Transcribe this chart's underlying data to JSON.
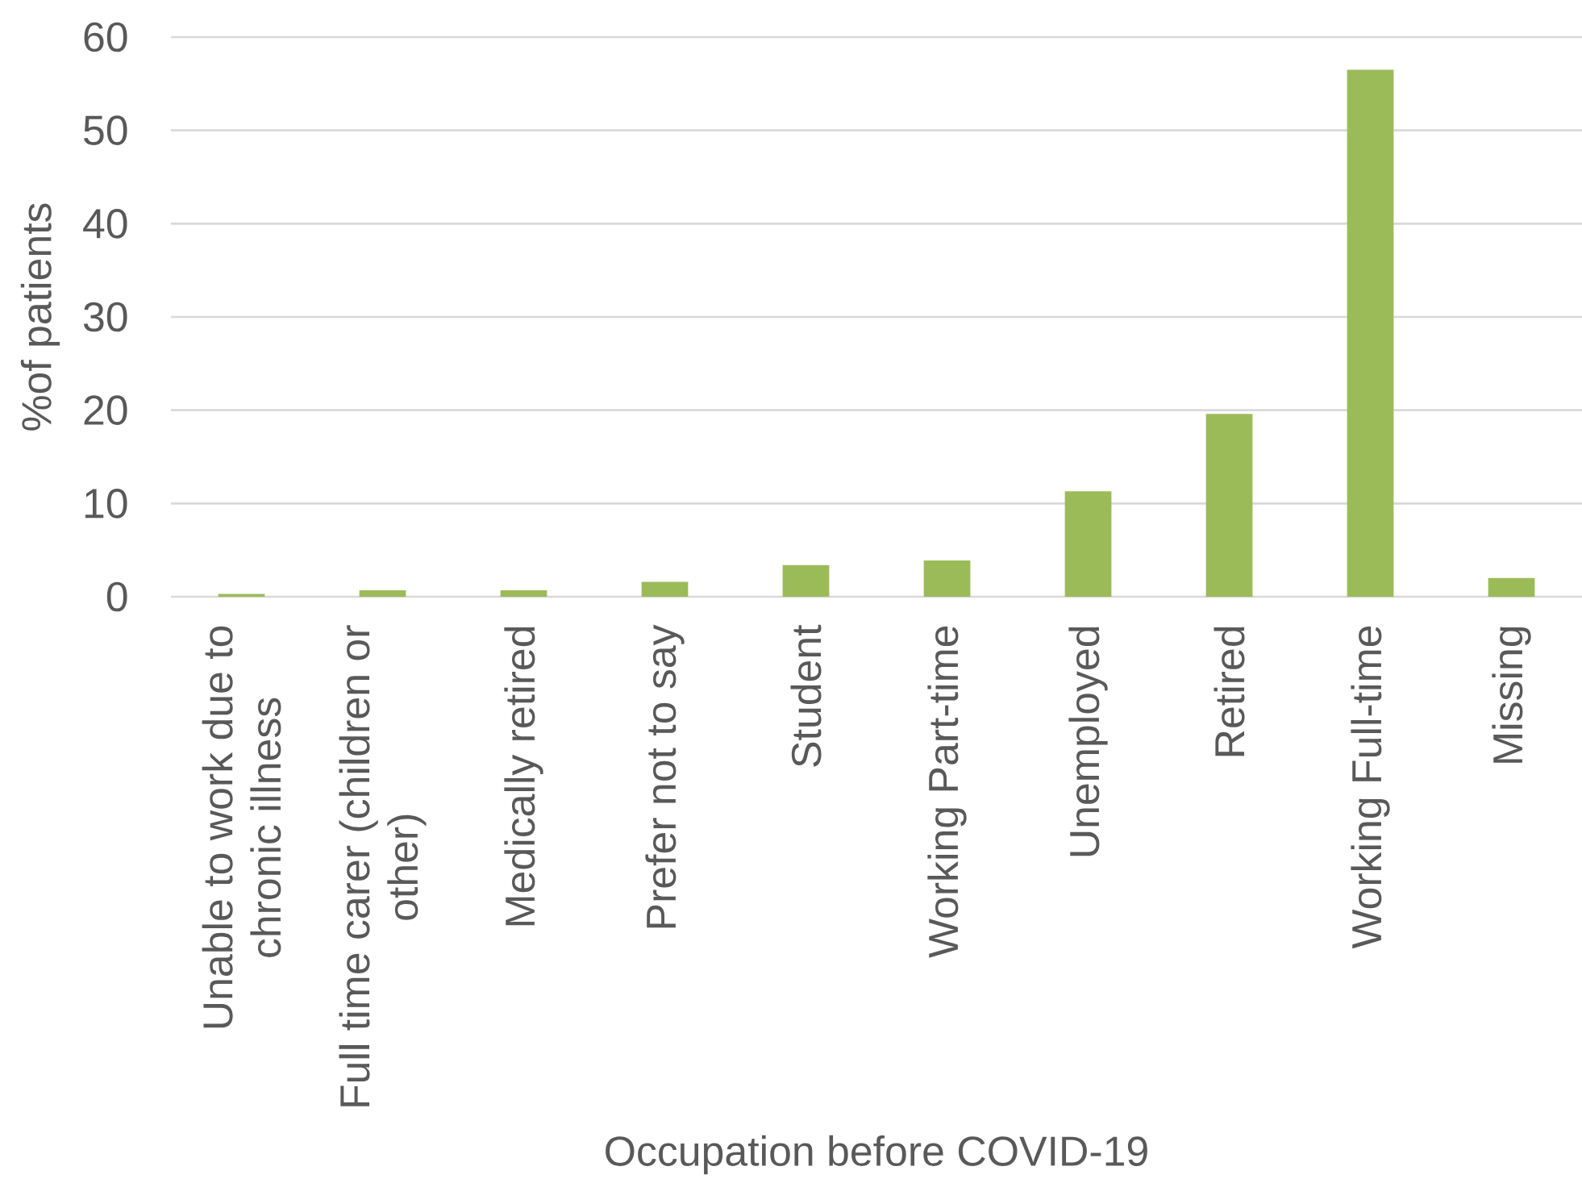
{
  "chart_data": {
    "type": "bar",
    "xlabel": "Occupation before COVID-19",
    "ylabel": "%of patients",
    "categories": [
      "Unable to work due to chronic illness",
      "Full time carer (children or other)",
      "Medically retired",
      "Prefer not to say",
      "Student",
      "Working Part-time",
      "Unemployed",
      "Retired",
      "Working Full-time",
      "Missing"
    ],
    "values": [
      0.3,
      0.7,
      0.7,
      1.6,
      3.4,
      3.9,
      11.3,
      19.6,
      56.5,
      2.0
    ],
    "color": "#9bbb59",
    "ylim": [
      0,
      60
    ],
    "yticks": [
      0,
      10,
      20,
      30,
      40,
      50,
      60
    ],
    "grid": "y"
  }
}
